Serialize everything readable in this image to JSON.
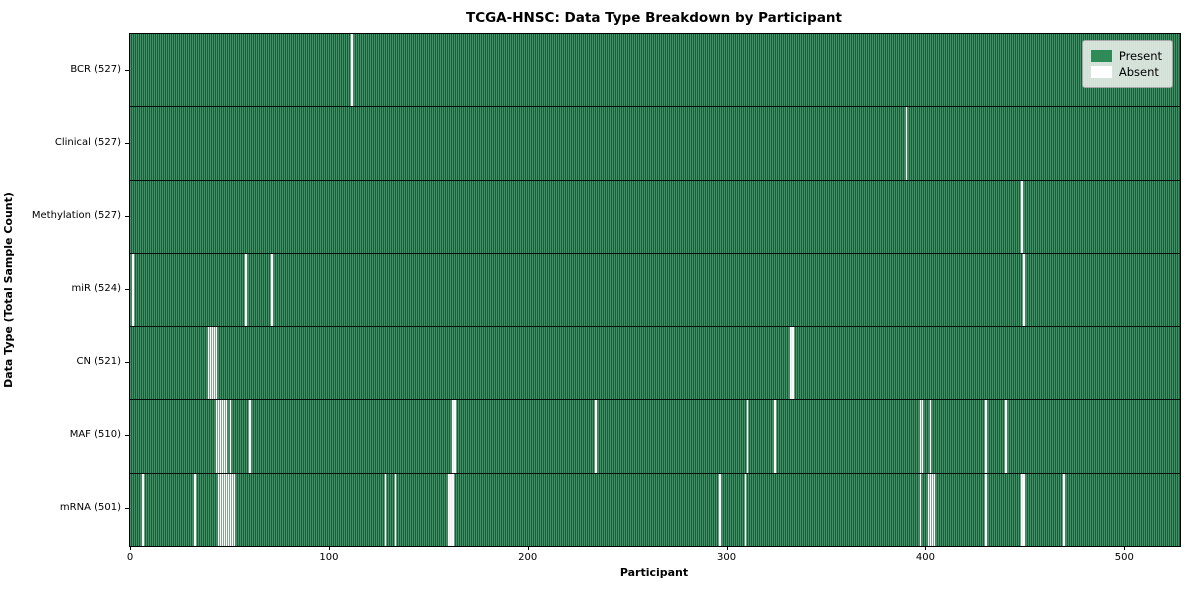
{
  "title": "TCGA-HNSC: Data Type Breakdown by Participant",
  "axes": {
    "xlabel": "Participant",
    "ylabel": "Data Type (Total Sample Count)"
  },
  "legend": {
    "items": [
      {
        "label": "Present",
        "color": "#2e8b57"
      },
      {
        "label": "Absent",
        "color": "#ffffff"
      }
    ]
  },
  "chart_data": {
    "type": "heatmap",
    "title": "TCGA-HNSC: Data Type Breakdown by Participant",
    "xlabel": "Participant",
    "ylabel": "Data Type (Total Sample Count)",
    "legend_position": "upper right",
    "n_participants": 528,
    "xlim": [
      -0.5,
      527.5
    ],
    "x_ticks": [
      0,
      100,
      200,
      300,
      400,
      500
    ],
    "colors": {
      "present": "#2e8b57",
      "present_stripe_light": "#3d9266",
      "present_stripe_dark": "#1c5c38",
      "absent": "#ffffff",
      "row_separator": "#0d0d0d"
    },
    "rows": [
      {
        "label": "BCR (527)",
        "name": "BCR",
        "present_count": 527,
        "absent_participants": [
          111
        ]
      },
      {
        "label": "Clinical (527)",
        "name": "Clinical",
        "present_count": 527,
        "absent_participants": [
          390
        ]
      },
      {
        "label": "Methylation (527)",
        "name": "Methylation",
        "present_count": 527,
        "absent_participants": [
          448
        ]
      },
      {
        "label": "miR (524)",
        "name": "miR",
        "present_count": 524,
        "absent_participants": [
          1,
          58,
          71,
          449
        ]
      },
      {
        "label": "CN (521)",
        "name": "CN",
        "present_count": 521,
        "absent_participants": [
          39,
          40,
          41,
          42,
          43,
          332,
          333
        ]
      },
      {
        "label": "MAF (510)",
        "name": "MAF",
        "present_count": 510,
        "absent_participants": [
          43,
          44,
          45,
          46,
          47,
          48,
          50,
          60,
          162,
          163,
          234,
          310,
          324,
          397,
          398,
          402,
          430,
          440
        ]
      },
      {
        "label": "mRNA (501)",
        "name": "mRNA",
        "present_count": 501,
        "absent_participants": [
          6,
          32,
          44,
          45,
          46,
          47,
          48,
          49,
          50,
          51,
          52,
          128,
          133,
          160,
          161,
          162,
          296,
          309,
          397,
          401,
          402,
          403,
          404,
          430,
          448,
          449,
          469
        ]
      }
    ]
  }
}
